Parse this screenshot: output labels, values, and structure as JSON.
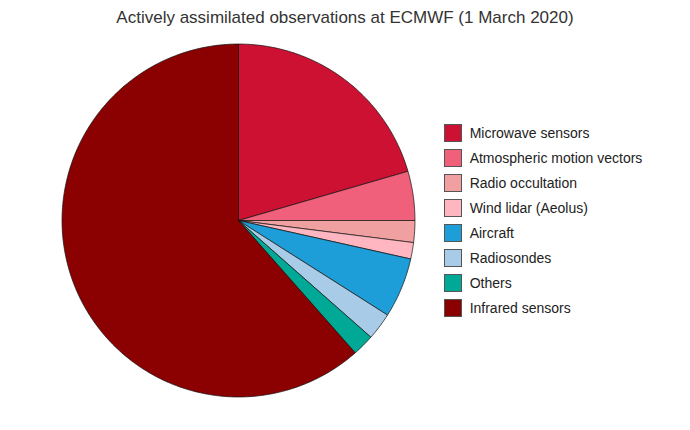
{
  "chart_data": {
    "type": "pie",
    "title": "Actively assimilated observations at ECMWF (1 March 2020)",
    "categories": [
      "Microwave sensors",
      "Atmospheric motion vectors",
      "Radio occultation",
      "Wind lidar (Aeolus)",
      "Aircraft",
      "Radiosondes",
      "Others",
      "Infrared sensors"
    ],
    "values": [
      20.5,
      4.5,
      2.0,
      1.5,
      5.5,
      2.5,
      2.0,
      61.5
    ],
    "colors": [
      "#CC1133",
      "#F0607A",
      "#F0A0A0",
      "#FFB6C1",
      "#1E9ED8",
      "#A8CCE8",
      "#00A896",
      "#8B0000"
    ],
    "legend": "right"
  }
}
